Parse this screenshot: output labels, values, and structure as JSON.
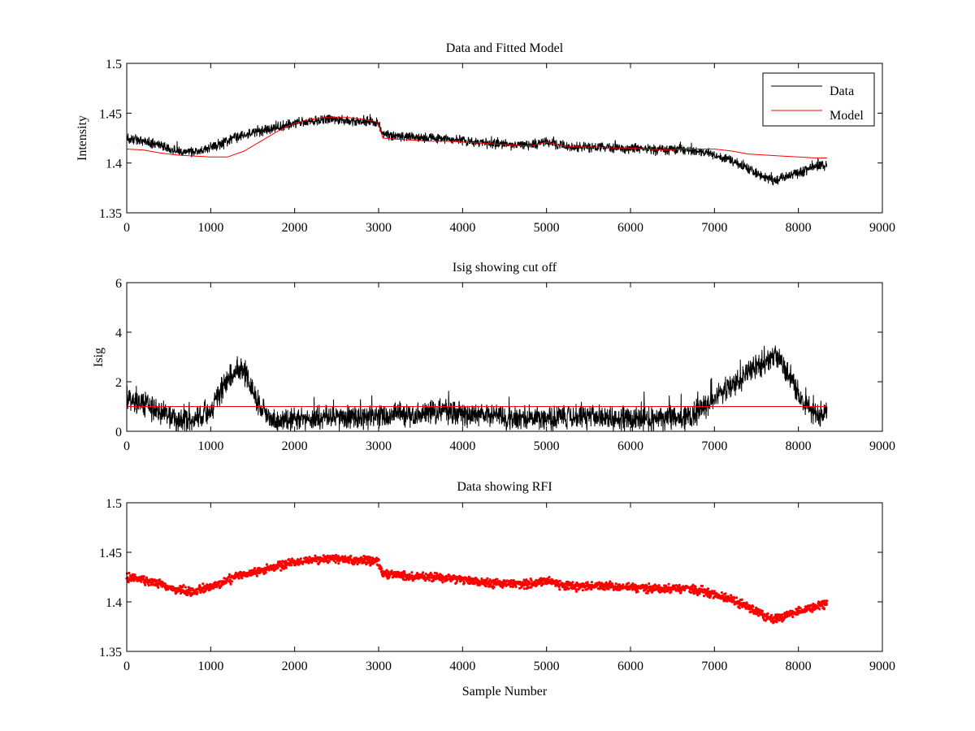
{
  "chart_data": [
    {
      "type": "line",
      "title": "Data and Fitted Model",
      "xlabel": "",
      "ylabel": "Intensity",
      "xlim": [
        0,
        9000
      ],
      "ylim": [
        1.35,
        1.5
      ],
      "xticks": [
        "0",
        "1000",
        "2000",
        "3000",
        "4000",
        "5000",
        "6000",
        "7000",
        "8000",
        "9000"
      ],
      "yticks": [
        "1.35",
        "1.4",
        "1.45",
        "1.5"
      ],
      "grid": false,
      "legend": {
        "position": "top-right",
        "entries": [
          "Data",
          "Model"
        ]
      },
      "series": [
        {
          "name": "Data",
          "color": "#000000",
          "style": "noisy line",
          "noise_amplitude": 0.006,
          "x": [
            0,
            200,
            400,
            600,
            800,
            1000,
            1200,
            1400,
            1600,
            1800,
            2000,
            2200,
            2400,
            2600,
            2800,
            2990,
            3050,
            3200,
            3400,
            3600,
            3800,
            4000,
            4200,
            4400,
            4600,
            4800,
            5000,
            5200,
            5400,
            5600,
            5800,
            6000,
            6200,
            6400,
            6600,
            6800,
            7000,
            7200,
            7400,
            7600,
            7700,
            7800,
            8000,
            8200,
            8340
          ],
          "y": [
            1.425,
            1.422,
            1.418,
            1.412,
            1.411,
            1.415,
            1.422,
            1.428,
            1.432,
            1.436,
            1.44,
            1.442,
            1.444,
            1.443,
            1.442,
            1.441,
            1.428,
            1.427,
            1.426,
            1.425,
            1.424,
            1.423,
            1.42,
            1.419,
            1.418,
            1.418,
            1.421,
            1.417,
            1.416,
            1.416,
            1.415,
            1.415,
            1.414,
            1.413,
            1.414,
            1.412,
            1.408,
            1.402,
            1.394,
            1.386,
            1.382,
            1.385,
            1.39,
            1.396,
            1.398
          ]
        },
        {
          "name": "Model",
          "color": "#ff0000",
          "style": "line",
          "x": [
            0,
            200,
            400,
            600,
            800,
            1000,
            1200,
            1400,
            1600,
            1800,
            2000,
            2200,
            2400,
            2600,
            2800,
            2990,
            3050,
            3200,
            3400,
            3600,
            3800,
            4000,
            4200,
            4400,
            4600,
            4800,
            5000,
            5200,
            5400,
            5600,
            5800,
            6000,
            6200,
            6400,
            6600,
            6800,
            7000,
            7200,
            7400,
            7600,
            7800,
            8000,
            8200,
            8340
          ],
          "y": [
            1.414,
            1.413,
            1.41,
            1.408,
            1.407,
            1.406,
            1.406,
            1.412,
            1.422,
            1.432,
            1.44,
            1.444,
            1.446,
            1.446,
            1.444,
            1.441,
            1.425,
            1.424,
            1.423,
            1.422,
            1.422,
            1.421,
            1.42,
            1.419,
            1.418,
            1.417,
            1.421,
            1.417,
            1.416,
            1.416,
            1.415,
            1.415,
            1.414,
            1.413,
            1.414,
            1.414,
            1.414,
            1.412,
            1.409,
            1.408,
            1.407,
            1.406,
            1.405,
            1.405
          ]
        }
      ]
    },
    {
      "type": "line",
      "title": "Isig showing cut off",
      "xlabel": "",
      "ylabel": "Isig",
      "xlim": [
        0,
        9000
      ],
      "ylim": [
        0,
        6
      ],
      "xticks": [
        "0",
        "1000",
        "2000",
        "3000",
        "4000",
        "5000",
        "6000",
        "7000",
        "8000",
        "9000"
      ],
      "yticks": [
        "0",
        "2",
        "4",
        "6"
      ],
      "grid": false,
      "series": [
        {
          "color": "#000000",
          "style": "noisy line, clipped at 0",
          "noise_amplitude": 0.6,
          "x": [
            0,
            200,
            400,
            600,
            800,
            1000,
            1100,
            1200,
            1300,
            1400,
            1500,
            1600,
            1800,
            2000,
            2500,
            3000,
            3500,
            3800,
            4000,
            4500,
            5000,
            5400,
            6000,
            6500,
            6700,
            6900,
            7100,
            7300,
            7500,
            7700,
            7800,
            7900,
            8000,
            8100,
            8200,
            8340
          ],
          "y": [
            1.3,
            1.1,
            0.8,
            0.5,
            0.5,
            0.8,
            1.5,
            2.1,
            2.5,
            2.4,
            1.6,
            0.9,
            0.4,
            0.5,
            0.6,
            0.6,
            0.7,
            0.8,
            0.7,
            0.6,
            0.5,
            0.6,
            0.5,
            0.5,
            0.6,
            1.0,
            1.6,
            2.1,
            2.6,
            3.0,
            2.8,
            2.2,
            1.5,
            1.0,
            0.7,
            0.7
          ]
        },
        {
          "color": "#ff0000",
          "style": "cut-off line",
          "x": [
            0,
            8340
          ],
          "y": [
            1,
            1
          ]
        }
      ]
    },
    {
      "type": "scatter",
      "title": "Data showing RFI",
      "xlabel": "Sample Number",
      "ylabel": "",
      "xlim": [
        0,
        9000
      ],
      "ylim": [
        1.35,
        1.5
      ],
      "xticks": [
        "0",
        "1000",
        "2000",
        "3000",
        "4000",
        "5000",
        "6000",
        "7000",
        "8000",
        "9000"
      ],
      "yticks": [
        "1.35",
        "1.4",
        "1.45",
        "1.5"
      ],
      "grid": false,
      "series": [
        {
          "color": "#ff0000",
          "style": "dense dot markers",
          "noise_amplitude": 0.006,
          "x": [
            0,
            200,
            400,
            600,
            800,
            1000,
            1200,
            1400,
            1600,
            1800,
            2000,
            2200,
            2400,
            2600,
            2800,
            2990,
            3050,
            3200,
            3400,
            3600,
            3800,
            4000,
            4200,
            4400,
            4600,
            4800,
            5000,
            5200,
            5400,
            5600,
            5800,
            6000,
            6200,
            6400,
            6600,
            6800,
            7000,
            7200,
            7400,
            7600,
            7700,
            7800,
            8000,
            8200,
            8340
          ],
          "y": [
            1.425,
            1.422,
            1.418,
            1.412,
            1.411,
            1.415,
            1.422,
            1.428,
            1.432,
            1.436,
            1.44,
            1.442,
            1.444,
            1.443,
            1.442,
            1.441,
            1.428,
            1.427,
            1.426,
            1.425,
            1.424,
            1.423,
            1.42,
            1.419,
            1.418,
            1.418,
            1.421,
            1.417,
            1.416,
            1.416,
            1.415,
            1.415,
            1.414,
            1.413,
            1.414,
            1.412,
            1.408,
            1.402,
            1.394,
            1.386,
            1.382,
            1.385,
            1.39,
            1.396,
            1.398
          ]
        }
      ]
    }
  ]
}
